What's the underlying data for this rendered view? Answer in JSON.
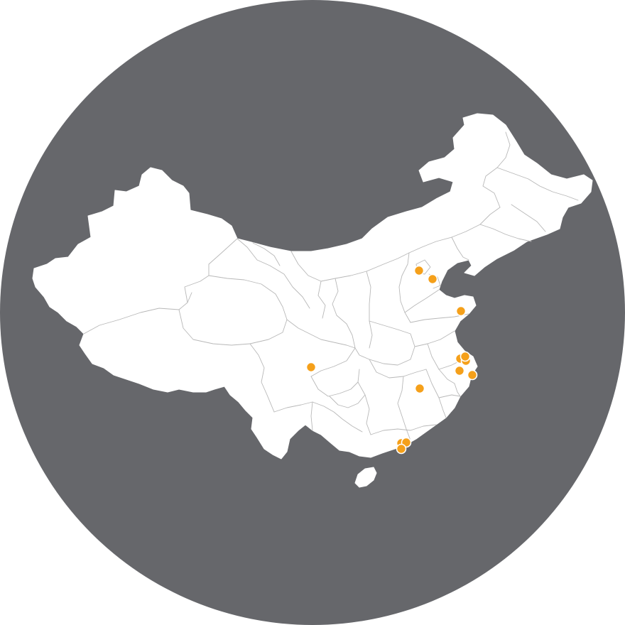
{
  "map": {
    "region": "China",
    "colors": {
      "background_disc": "#66676b",
      "land": "#ffffff",
      "borders": "#b8b8b8",
      "marker": "#f5a01a",
      "marker_outline": "#ffffff"
    },
    "markers": [
      {
        "name": "beijing-marker"
      },
      {
        "name": "tianjin-marker"
      },
      {
        "name": "qingdao-marker"
      },
      {
        "name": "chengdu-marker"
      },
      {
        "name": "changsha-marker"
      },
      {
        "name": "nanjing-marker"
      },
      {
        "name": "suzhou-marker"
      },
      {
        "name": "shanghai-marker"
      },
      {
        "name": "hangzhou-marker"
      },
      {
        "name": "ningbo-marker"
      },
      {
        "name": "guangzhou-marker"
      },
      {
        "name": "dongguan-marker"
      },
      {
        "name": "shenzhen-marker"
      }
    ]
  }
}
